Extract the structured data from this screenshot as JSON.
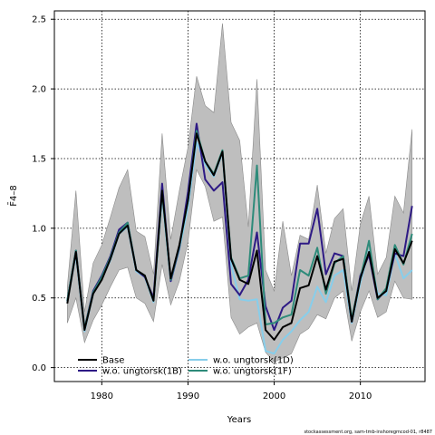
{
  "chart_data": {
    "type": "line",
    "xlabel": "Years",
    "ylabel": "F̄4–8",
    "xlim": [
      1974.5,
      2017.5
    ],
    "ylim": [
      -0.1,
      2.56
    ],
    "xticks": [
      1980,
      1990,
      2000,
      2010
    ],
    "yticks": [
      0.0,
      0.5,
      1.0,
      1.5,
      2.0,
      2.5
    ],
    "ytick_labels": [
      "0.0",
      "0.5",
      "1.0",
      "1.5",
      "2.0",
      "2.5"
    ],
    "grid": true,
    "legend_position": "bottom-left",
    "footnote": "stockassessment.org, sam-tmb-inshoregmcod-01, r8487",
    "x": [
      1976,
      1977,
      1978,
      1979,
      1980,
      1981,
      1982,
      1983,
      1984,
      1985,
      1986,
      1987,
      1988,
      1989,
      1990,
      1991,
      1992,
      1993,
      1994,
      1995,
      1996,
      1997,
      1998,
      1999,
      2000,
      2001,
      2002,
      2003,
      2004,
      2005,
      2006,
      2007,
      2008,
      2009,
      2010,
      2011,
      2012,
      2013,
      2014,
      2015,
      2016
    ],
    "band": {
      "name": "Base confidence interval",
      "color": "#bebebe",
      "lower": [
        0.32,
        0.5,
        0.18,
        0.34,
        0.45,
        0.58,
        0.7,
        0.72,
        0.5,
        0.46,
        0.33,
        0.74,
        0.45,
        0.62,
        0.9,
        1.42,
        1.3,
        1.05,
        1.08,
        0.36,
        0.24,
        0.29,
        0.32,
        0.11,
        0.04,
        0.07,
        0.1,
        0.24,
        0.28,
        0.38,
        0.35,
        0.5,
        0.55,
        0.19,
        0.4,
        0.55,
        0.36,
        0.4,
        0.62,
        0.5,
        0.49
      ],
      "upper": [
        0.58,
        1.27,
        0.4,
        0.75,
        0.88,
        1.08,
        1.29,
        1.42,
        0.98,
        0.94,
        0.67,
        1.68,
        0.92,
        1.27,
        1.58,
        2.09,
        1.88,
        1.83,
        2.47,
        1.76,
        1.63,
        1.01,
        2.07,
        0.7,
        0.55,
        1.05,
        0.66,
        0.95,
        0.92,
        1.31,
        0.82,
        1.07,
        1.14,
        0.55,
        1.03,
        1.23,
        0.67,
        0.79,
        1.23,
        1.11,
        1.71
      ]
    },
    "series": [
      {
        "name": "Base",
        "color": "#000000",
        "values": [
          0.46,
          0.83,
          0.27,
          0.53,
          0.63,
          0.78,
          0.96,
          1.02,
          0.7,
          0.66,
          0.48,
          1.27,
          0.64,
          0.88,
          1.2,
          1.68,
          1.48,
          1.38,
          1.55,
          0.78,
          0.63,
          0.6,
          0.84,
          0.27,
          0.2,
          0.29,
          0.32,
          0.57,
          0.59,
          0.8,
          0.56,
          0.76,
          0.78,
          0.33,
          0.64,
          0.83,
          0.5,
          0.55,
          0.85,
          0.75,
          0.91
        ]
      },
      {
        "name": "w.o. ungtorsk(1B)",
        "color": "#2e1a85",
        "values": [
          0.48,
          0.84,
          0.28,
          0.55,
          0.66,
          0.8,
          0.99,
          1.04,
          0.7,
          0.65,
          0.5,
          1.32,
          0.62,
          0.86,
          1.26,
          1.75,
          1.35,
          1.27,
          1.33,
          0.6,
          0.52,
          0.63,
          0.97,
          0.44,
          0.27,
          0.43,
          0.48,
          0.89,
          0.89,
          1.14,
          0.67,
          0.82,
          0.8,
          0.33,
          0.66,
          0.81,
          0.49,
          0.56,
          0.82,
          0.8,
          1.16
        ]
      },
      {
        "name": "w.o. ungtorsk(1D)",
        "color": "#87ceeb",
        "values": [
          0.47,
          0.81,
          0.26,
          0.53,
          0.64,
          0.77,
          0.96,
          1.01,
          0.69,
          0.65,
          0.47,
          1.23,
          0.62,
          0.85,
          1.15,
          1.62,
          1.46,
          1.37,
          1.54,
          0.74,
          0.49,
          0.48,
          0.49,
          0.12,
          0.1,
          0.2,
          0.26,
          0.34,
          0.4,
          0.58,
          0.47,
          0.66,
          0.7,
          0.32,
          0.61,
          0.84,
          0.53,
          0.52,
          0.82,
          0.64,
          0.7
        ]
      },
      {
        "name": "w.o. ungtorsk(1F)",
        "color": "#2e8b7a",
        "values": [
          0.48,
          0.84,
          0.28,
          0.54,
          0.65,
          0.79,
          0.97,
          1.04,
          0.7,
          0.66,
          0.48,
          1.27,
          0.63,
          0.87,
          1.2,
          1.7,
          1.48,
          1.39,
          1.56,
          0.79,
          0.64,
          0.66,
          1.45,
          0.31,
          0.32,
          0.36,
          0.38,
          0.7,
          0.66,
          0.86,
          0.53,
          0.75,
          0.8,
          0.35,
          0.64,
          0.91,
          0.49,
          0.57,
          0.88,
          0.74,
          0.96
        ]
      }
    ]
  }
}
